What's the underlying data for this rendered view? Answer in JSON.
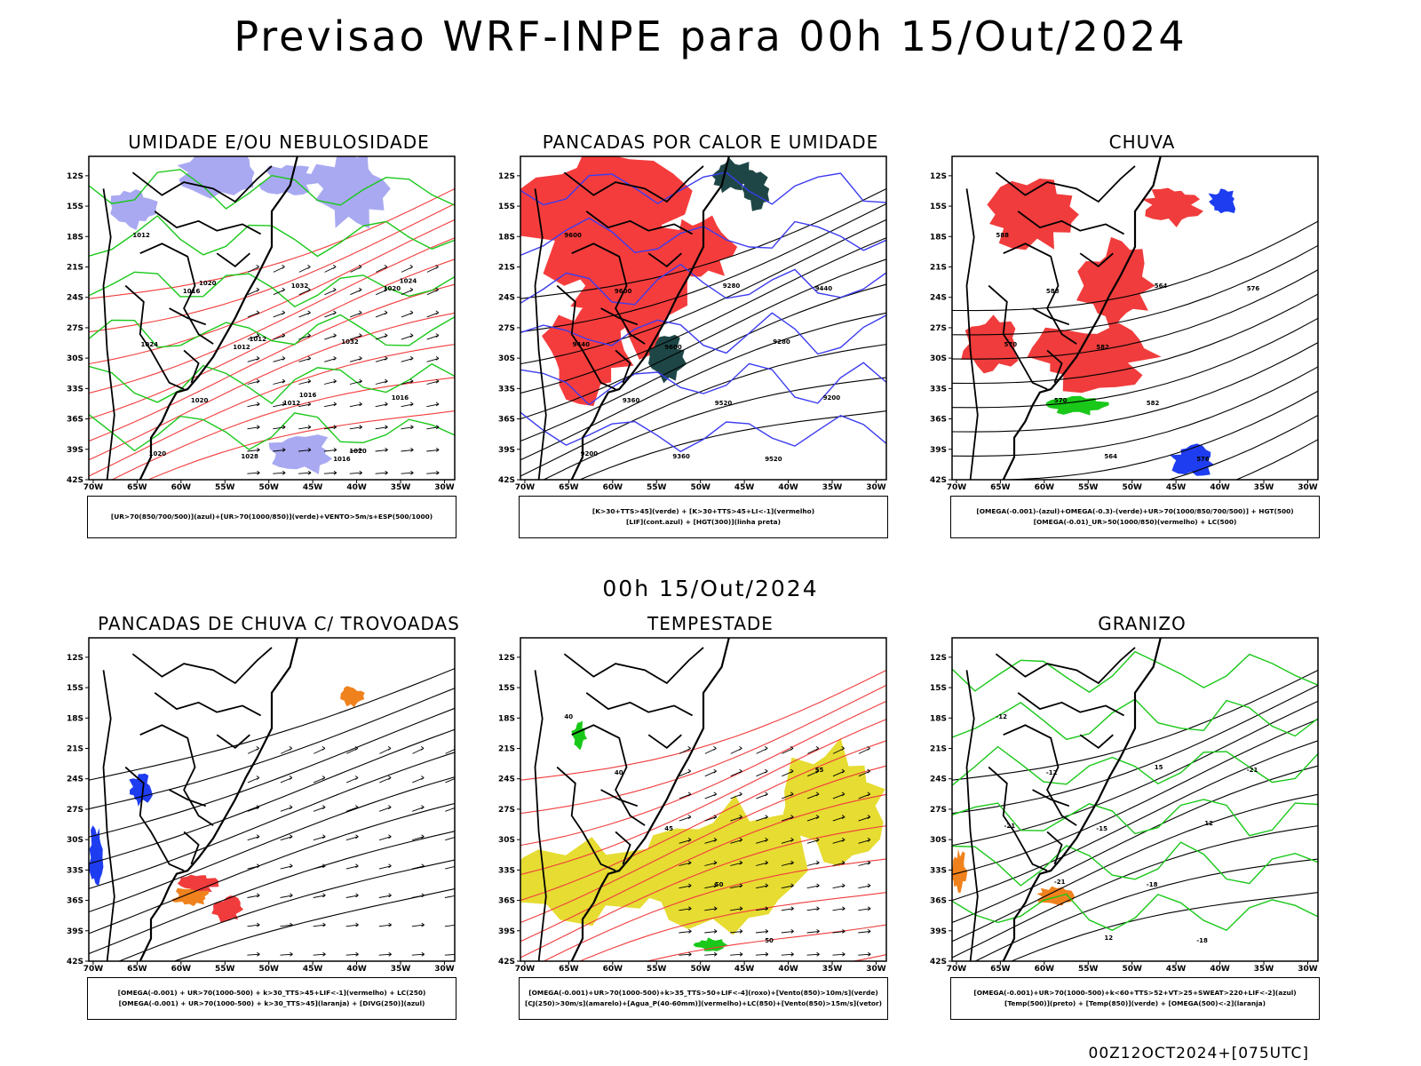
{
  "page": {
    "title": "Previsao WRF-INPE  para 00h 15/Out/2024",
    "subtitle": "00h 15/Out/2024",
    "footer": "00Z12OCT2024+[075UTC]"
  },
  "chart_data": [
    {
      "type": "map",
      "title": "UMIDADE E/OU NEBULOSIDADE",
      "legend_lines": [
        "[UR>70(850/700/500)](azul)+[UR>70(1000/850)](verde)+VENTO>5m/s+ESP(500/1000)"
      ],
      "xticks": [
        "70W",
        "65W",
        "60W",
        "55W",
        "50W",
        "45W",
        "40W",
        "35W",
        "30W"
      ],
      "yticks": [
        "12S",
        "15S",
        "18S",
        "21S",
        "24S",
        "27S",
        "30S",
        "33S",
        "36S",
        "39S",
        "42S"
      ],
      "xlim": [
        -70,
        -28
      ],
      "ylim": [
        -42,
        -10
      ],
      "contour_labels": [
        "1012",
        "1016",
        "1012",
        "1012",
        "1016",
        "1020",
        "1024",
        "1020",
        "1028",
        "1032",
        "1032",
        "1016",
        "1020",
        "1020",
        "1012",
        "1016",
        "1020",
        "1024"
      ],
      "colors": {
        "shade": "#a9a9f2",
        "contour1": "#19c819",
        "contour2": "#f23c3c"
      }
    },
    {
      "type": "map",
      "title": "PANCADAS POR CALOR E UMIDADE",
      "legend_lines": [
        "[K>30+TTS>45](verde) + [K>30+TTS>45+LI<-1](vermelho)",
        "[LIF](cont.azul) + [HGT(300)](linha preta)"
      ],
      "xticks": [
        "70W",
        "65W",
        "60W",
        "55W",
        "50W",
        "45W",
        "40W",
        "35W",
        "30W"
      ],
      "yticks": [
        "12S",
        "15S",
        "18S",
        "21S",
        "24S",
        "27S",
        "30S",
        "33S",
        "36S",
        "39S",
        "42S"
      ],
      "xlim": [
        -70,
        -28
      ],
      "ylim": [
        -42,
        -10
      ],
      "contour_labels": [
        "9600",
        "9600",
        "9600",
        "9520",
        "9520",
        "9440",
        "9440",
        "9360",
        "9360",
        "9280",
        "9280",
        "9200",
        "9200"
      ],
      "colors": {
        "shade": "#f53c3c",
        "shade2": "#1e4646",
        "contour1": "#3c3cf0",
        "contour2": "#000000"
      }
    },
    {
      "type": "map",
      "title": "CHUVA",
      "legend_lines": [
        "[OMEGA(-0.001)-(azul)+OMEGA(-0.3)-(verde)+UR>70(1000/850/700/500)] + HGT(500)",
        "[OMEGA(-0.01)_UR>50(1000/850)(vermelho) + LC(500)"
      ],
      "xticks": [
        "70W",
        "65W",
        "60W",
        "55W",
        "50W",
        "45W",
        "40W",
        "35W",
        "30W"
      ],
      "yticks": [
        "12S",
        "15S",
        "18S",
        "21S",
        "24S",
        "27S",
        "30S",
        "33S",
        "36S",
        "39S",
        "42S"
      ],
      "xlim": [
        -70,
        -28
      ],
      "ylim": [
        -42,
        -10
      ],
      "contour_labels": [
        "588",
        "588",
        "582",
        "582",
        "576",
        "576",
        "570",
        "570",
        "564",
        "564"
      ],
      "colors": {
        "shade": "#f03c3c",
        "shade2": "#1e3cf0",
        "shade3": "#19c819",
        "contour2": "#000000"
      }
    },
    {
      "type": "map",
      "title": "PANCADAS DE CHUVA C/ TROVOADAS",
      "legend_lines": [
        "[OMEGA(-0.001) + UR>70(1000-500) + k>30_TTS>45+LIF<-1](vermelho) + LC(250)",
        "[OMEGA(-0.001) + UR>70(1000-500) + k>30_TTS>45](laranja) + [DIVG(250)](azul)"
      ],
      "xticks": [
        "70W",
        "65W",
        "60W",
        "55W",
        "50W",
        "45W",
        "40W",
        "35W",
        "30W"
      ],
      "yticks": [
        "12S",
        "15S",
        "18S",
        "21S",
        "24S",
        "27S",
        "30S",
        "33S",
        "36S",
        "39S",
        "42S"
      ],
      "xlim": [
        -70,
        -28
      ],
      "ylim": [
        -42,
        -10
      ],
      "contour_labels": [],
      "colors": {
        "shade": "#f03c3c",
        "shade2": "#f0821e",
        "shade3": "#1e3cf0",
        "contour2": "#000000"
      }
    },
    {
      "type": "map",
      "title": "TEMPESTADE",
      "legend_lines": [
        "[OMEGA(-0.001)+UR>70(1000-500)+k>35_TTS>50+LIF<-4](roxo)+[Vento(850)>10m/s](verde)",
        "[CJ(250)>30m/s](amarelo)+[Agua_P(40-60mm)](vermelho)+LC(850)+[Vento(850)>15m/s](vetor)"
      ],
      "xticks": [
        "70W",
        "65W",
        "60W",
        "55W",
        "50W",
        "45W",
        "40W",
        "35W",
        "30W"
      ],
      "yticks": [
        "12S",
        "15S",
        "18S",
        "21S",
        "24S",
        "27S",
        "30S",
        "33S",
        "36S",
        "39S",
        "42S"
      ],
      "xlim": [
        -70,
        -28
      ],
      "ylim": [
        -42,
        -10
      ],
      "contour_labels": [
        "40",
        "40",
        "45",
        "50",
        "50",
        "55"
      ],
      "colors": {
        "shade": "#e6dc32",
        "shade2": "#19c819",
        "contour1": "#f03c3c",
        "contour2": "#000000"
      }
    },
    {
      "type": "map",
      "title": "GRANIZO",
      "legend_lines": [
        "[OMEGA(-0.001)+UR>70(1000-500)+k<60+TTS>52+VT>25+SWEAT>220+LIF<-2](azul)",
        "[Temp(500)](preto) + [Temp(850)](verde) + [OMEGA(500)<-2](laranja)"
      ],
      "xticks": [
        "70W",
        "65W",
        "60W",
        "55W",
        "50W",
        "45W",
        "40W",
        "35W",
        "30W"
      ],
      "yticks": [
        "12S",
        "15S",
        "18S",
        "21S",
        "24S",
        "27S",
        "30S",
        "33S",
        "36S",
        "39S",
        "42S"
      ],
      "xlim": [
        -70,
        -28
      ],
      "ylim": [
        -42,
        -10
      ],
      "contour_labels": [
        "-12",
        "-12",
        "-15",
        "-18",
        "-18",
        "-21",
        "-21",
        "-21",
        "12",
        "15",
        "12"
      ],
      "colors": {
        "shade": "#f0821e",
        "contour1": "#19c819",
        "contour2": "#000000"
      }
    }
  ]
}
